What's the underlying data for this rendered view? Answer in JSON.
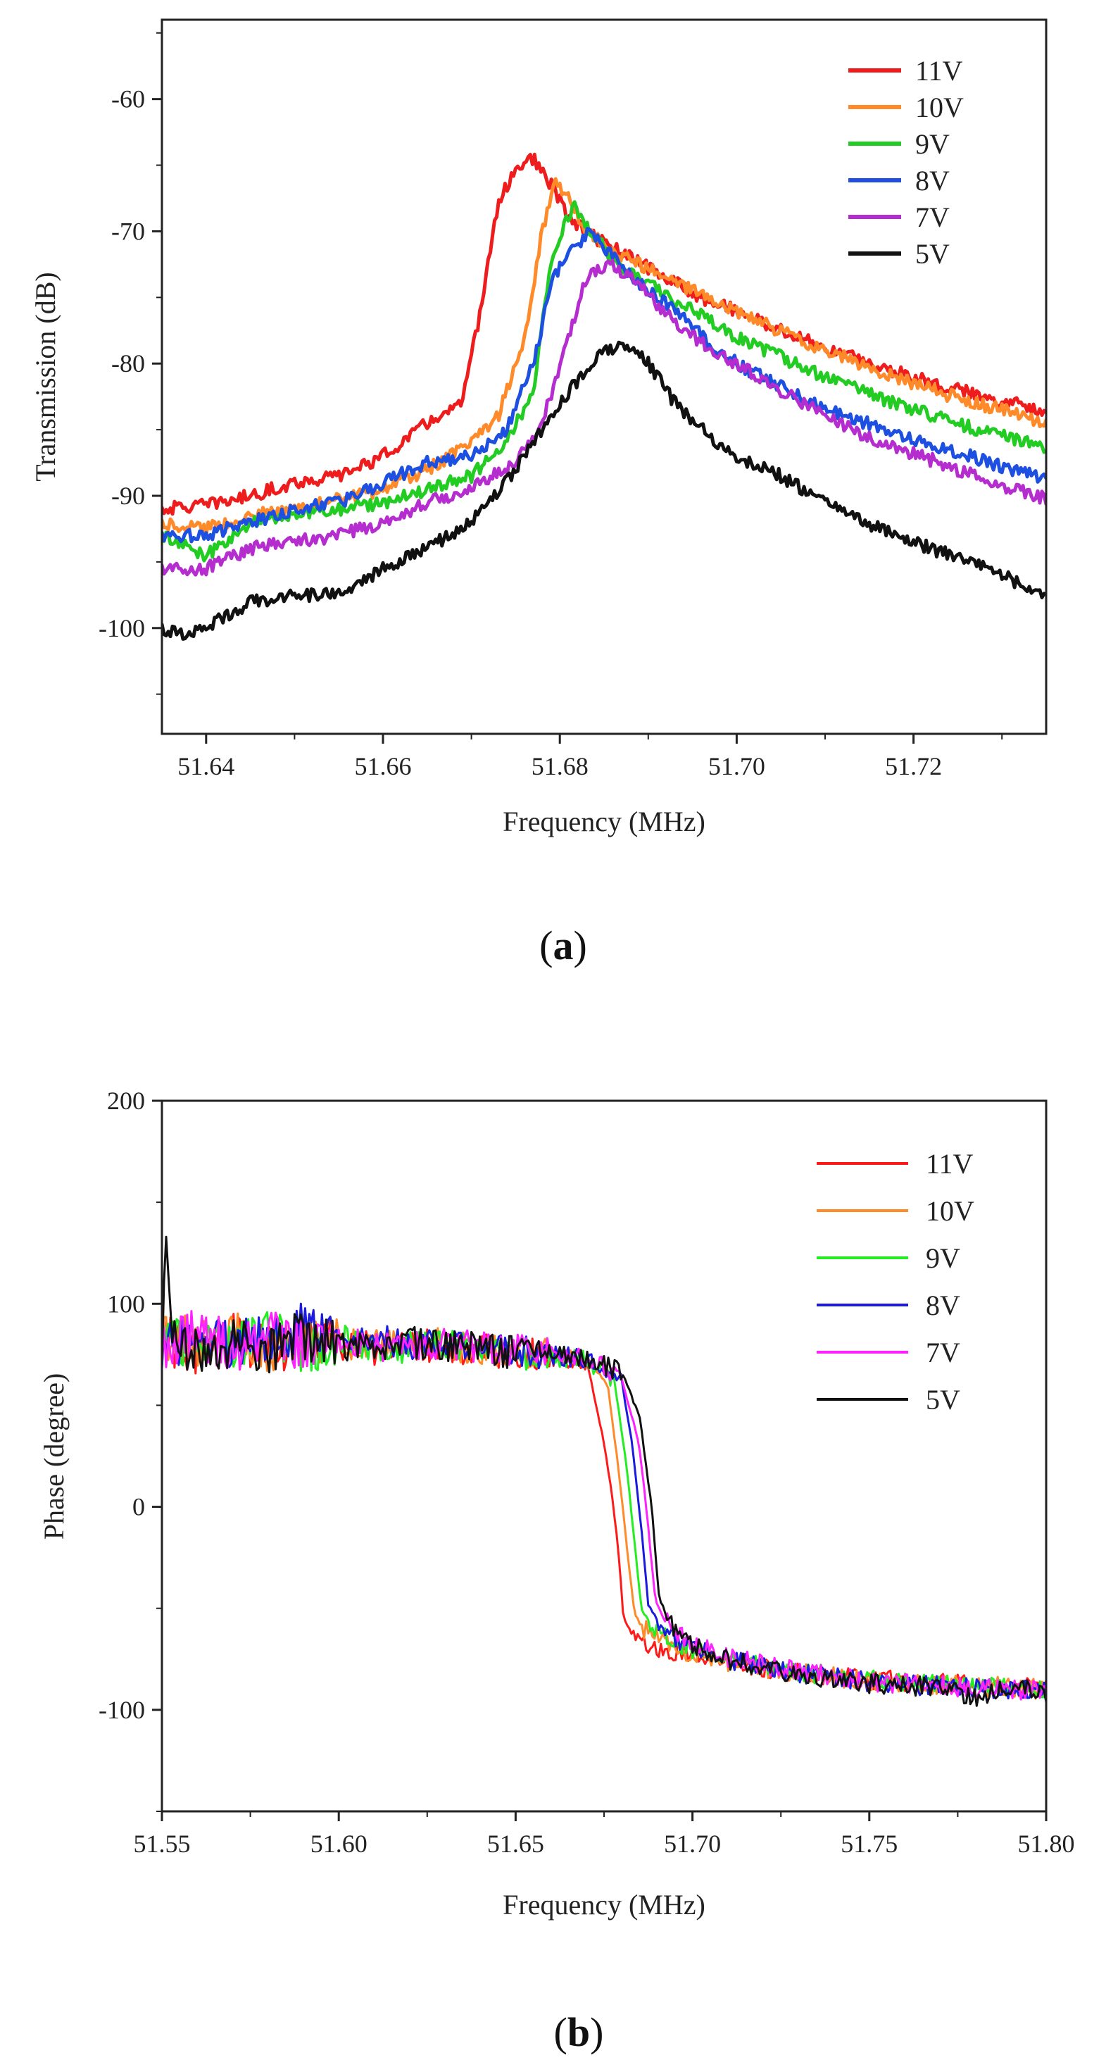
{
  "figure": {
    "panel_a_label_open": "(",
    "panel_a_label_letter": "a",
    "panel_a_label_close": ")",
    "panel_b_label_open": "(",
    "panel_b_label_letter": "b",
    "panel_b_label_close": ")"
  },
  "chart_data": [
    {
      "id": "a",
      "type": "line",
      "title": "",
      "xlabel": "Frequency (MHz)",
      "ylabel": "Transmission (dB)",
      "xlim": [
        51.635,
        51.735
      ],
      "ylim": [
        -108,
        -54
      ],
      "xticks": [
        51.64,
        51.66,
        51.68,
        51.7,
        51.72
      ],
      "xtick_labels": [
        "51.64",
        "51.66",
        "51.68",
        "51.70",
        "51.72"
      ],
      "yticks": [
        -100,
        -90,
        -80,
        -70,
        -60
      ],
      "ytick_labels": [
        "-100",
        "-90",
        "-80",
        "-70",
        "-60"
      ],
      "legend": "top-right",
      "series": [
        {
          "name": "11V",
          "color": "#ee1c1c",
          "x": [
            51.635,
            51.64,
            51.645,
            51.65,
            51.655,
            51.66,
            51.665,
            51.669,
            51.671,
            51.673,
            51.675,
            51.677,
            51.679,
            51.681,
            51.684,
            51.688,
            51.692,
            51.696,
            51.7,
            51.705,
            51.71,
            51.715,
            51.72,
            51.725,
            51.73,
            51.735
          ],
          "y": [
            -91,
            -90.7,
            -90,
            -89,
            -88.5,
            -87,
            -84.5,
            -83,
            -76,
            -68,
            -65.2,
            -64.5,
            -66.5,
            -69,
            -70.5,
            -72,
            -73.5,
            -75,
            -76,
            -77.5,
            -78.8,
            -80,
            -81,
            -82,
            -82.8,
            -83.5
          ]
        },
        {
          "name": "10V",
          "color": "#ff8a2a",
          "x": [
            51.635,
            51.64,
            51.645,
            51.65,
            51.655,
            51.66,
            51.665,
            51.67,
            51.673,
            51.676,
            51.678,
            51.6795,
            51.681,
            51.683,
            51.686,
            51.69,
            51.695,
            51.7,
            51.705,
            51.71,
            51.715,
            51.72,
            51.725,
            51.73,
            51.735
          ],
          "y": [
            -92,
            -92.5,
            -91.5,
            -91,
            -90.3,
            -89.5,
            -88,
            -86,
            -84,
            -78,
            -70,
            -66,
            -67.5,
            -70,
            -71.5,
            -72.8,
            -74.5,
            -76,
            -77.6,
            -79,
            -80.3,
            -81.5,
            -82.6,
            -83.5,
            -84.5
          ]
        },
        {
          "name": "9V",
          "color": "#22cc22",
          "x": [
            51.635,
            51.64,
            51.645,
            51.65,
            51.655,
            51.66,
            51.665,
            51.67,
            51.674,
            51.677,
            51.679,
            51.6815,
            51.684,
            51.687,
            51.69,
            51.695,
            51.7,
            51.705,
            51.71,
            51.715,
            51.72,
            51.725,
            51.73,
            51.735
          ],
          "y": [
            -93,
            -94.5,
            -92,
            -91.5,
            -91,
            -90.5,
            -89.5,
            -88.5,
            -86,
            -82,
            -72,
            -68,
            -70.5,
            -72.8,
            -74,
            -76,
            -78,
            -79.5,
            -81,
            -82.3,
            -83.5,
            -84.5,
            -85.5,
            -86.3
          ]
        },
        {
          "name": "8V",
          "color": "#1d4fe0",
          "x": [
            51.635,
            51.64,
            51.645,
            51.65,
            51.655,
            51.66,
            51.665,
            51.67,
            51.674,
            51.677,
            51.679,
            51.681,
            51.6835,
            51.686,
            51.689,
            51.693,
            51.697,
            51.7,
            51.705,
            51.71,
            51.715,
            51.72,
            51.725,
            51.73,
            51.735
          ],
          "y": [
            -93,
            -93,
            -92,
            -91,
            -90.5,
            -89,
            -87.5,
            -87,
            -85,
            -80,
            -74,
            -71.5,
            -70,
            -72,
            -74,
            -76,
            -78.5,
            -80,
            -81.8,
            -83.3,
            -84.6,
            -85.7,
            -86.7,
            -87.8,
            -88.8
          ]
        },
        {
          "name": "7V",
          "color": "#b52ccf",
          "x": [
            51.635,
            51.64,
            51.645,
            51.65,
            51.655,
            51.66,
            51.665,
            51.67,
            51.675,
            51.678,
            51.681,
            51.683,
            51.6855,
            51.688,
            51.691,
            51.695,
            51.7,
            51.705,
            51.71,
            51.715,
            51.72,
            51.725,
            51.73,
            51.735
          ],
          "y": [
            -95.5,
            -95.5,
            -94,
            -93.5,
            -93,
            -92,
            -90.5,
            -89.5,
            -87.5,
            -84.5,
            -78,
            -73.5,
            -72.3,
            -73.5,
            -75.5,
            -78,
            -80,
            -82,
            -84,
            -85.6,
            -86.8,
            -88,
            -89.2,
            -90.2
          ]
        },
        {
          "name": "5V",
          "color": "#111111",
          "x": [
            51.635,
            51.637,
            51.64,
            51.645,
            51.65,
            51.655,
            51.66,
            51.665,
            51.67,
            51.675,
            51.68,
            51.684,
            51.6875,
            51.69,
            51.693,
            51.697,
            51.7,
            51.705,
            51.71,
            51.715,
            51.72,
            51.725,
            51.73,
            51.735
          ],
          "y": [
            -100,
            -100.5,
            -100,
            -98,
            -97.5,
            -97.5,
            -95.5,
            -94,
            -92,
            -88,
            -83,
            -79.5,
            -78.5,
            -80,
            -83,
            -85.5,
            -87,
            -88.5,
            -90.5,
            -92.2,
            -93.5,
            -94.7,
            -96,
            -97.5
          ]
        }
      ]
    },
    {
      "id": "b",
      "type": "line",
      "title": "",
      "xlabel": "Frequency (MHz)",
      "ylabel": "Phase (degree)",
      "xlim": [
        51.55,
        51.8
      ],
      "ylim": [
        -150,
        200
      ],
      "xticks": [
        51.55,
        51.6,
        51.65,
        51.7,
        51.75,
        51.8
      ],
      "xtick_labels": [
        "51.55",
        "51.60",
        "51.65",
        "51.70",
        "51.75",
        "51.80"
      ],
      "yticks": [
        -100,
        0,
        100,
        200
      ],
      "ytick_labels": [
        "-100",
        "0",
        "100",
        "200"
      ],
      "legend": "top-right",
      "series": [
        {
          "name": "11V",
          "color": "#ff1a1a",
          "x": [
            51.55,
            51.56,
            51.57,
            51.58,
            51.59,
            51.6,
            51.61,
            51.62,
            51.63,
            51.64,
            51.65,
            51.66,
            51.67,
            51.674,
            51.677,
            51.679,
            51.6805,
            51.683,
            51.688,
            51.695,
            51.7,
            51.71,
            51.72,
            51.73,
            51.74,
            51.75,
            51.76,
            51.77,
            51.78,
            51.79,
            51.8
          ],
          "y": [
            82,
            78,
            85,
            76,
            83,
            80,
            78,
            80,
            79,
            77,
            76,
            74,
            72,
            40,
            10,
            -20,
            -55,
            -63,
            -68,
            -71,
            -73,
            -76,
            -79,
            -82,
            -84,
            -85,
            -86,
            -87,
            -88,
            -88,
            -89
          ]
        },
        {
          "name": "10V",
          "color": "#ff8a2a",
          "x": [
            51.55,
            51.56,
            51.57,
            51.58,
            51.59,
            51.6,
            51.61,
            51.62,
            51.63,
            51.64,
            51.65,
            51.66,
            51.67,
            51.676,
            51.679,
            51.6815,
            51.6835,
            51.686,
            51.69,
            51.695,
            51.7,
            51.71,
            51.72,
            51.73,
            51.74,
            51.75,
            51.76,
            51.77,
            51.78,
            51.79,
            51.8
          ],
          "y": [
            85,
            80,
            88,
            77,
            84,
            81,
            79,
            81,
            80,
            78,
            77,
            75,
            73,
            60,
            20,
            -20,
            -52,
            -60,
            -65,
            -69,
            -72,
            -76,
            -79,
            -82,
            -84,
            -86,
            -87,
            -88,
            -88,
            -89,
            -90
          ]
        },
        {
          "name": "9V",
          "color": "#22ee22",
          "x": [
            51.55,
            51.56,
            51.57,
            51.58,
            51.59,
            51.6,
            51.61,
            51.62,
            51.63,
            51.64,
            51.65,
            51.66,
            51.67,
            51.678,
            51.681,
            51.6835,
            51.6855,
            51.688,
            51.692,
            51.697,
            51.7,
            51.71,
            51.72,
            51.73,
            51.74,
            51.75,
            51.76,
            51.77,
            51.78,
            51.79,
            51.8
          ],
          "y": [
            80,
            83,
            79,
            86,
            78,
            82,
            80,
            78,
            81,
            79,
            76,
            74,
            73,
            62,
            25,
            -15,
            -50,
            -58,
            -64,
            -68,
            -71,
            -75,
            -79,
            -81,
            -83,
            -85,
            -87,
            -87,
            -88,
            -89,
            -90
          ]
        },
        {
          "name": "8V",
          "color": "#1a1ae0",
          "x": [
            51.55,
            51.56,
            51.57,
            51.58,
            51.59,
            51.6,
            51.61,
            51.62,
            51.63,
            51.64,
            51.65,
            51.66,
            51.67,
            51.68,
            51.683,
            51.6855,
            51.6875,
            51.69,
            51.694,
            51.699,
            51.7,
            51.71,
            51.72,
            51.73,
            51.74,
            51.75,
            51.76,
            51.77,
            51.78,
            51.79,
            51.8
          ],
          "y": [
            78,
            84,
            80,
            83,
            88,
            79,
            82,
            80,
            78,
            80,
            77,
            75,
            73,
            62,
            30,
            -10,
            -48,
            -56,
            -63,
            -68,
            -70,
            -75,
            -79,
            -82,
            -84,
            -86,
            -88,
            -88,
            -89,
            -90,
            -91
          ]
        },
        {
          "name": "7V",
          "color": "#ff22ff",
          "x": [
            51.55,
            51.56,
            51.57,
            51.58,
            51.59,
            51.6,
            51.61,
            51.62,
            51.63,
            51.64,
            51.65,
            51.66,
            51.67,
            51.68,
            51.685,
            51.6875,
            51.6895,
            51.692,
            51.696,
            51.7,
            51.71,
            51.72,
            51.73,
            51.74,
            51.75,
            51.76,
            51.77,
            51.78,
            51.79,
            51.8
          ],
          "y": [
            80,
            86,
            78,
            84,
            80,
            83,
            79,
            81,
            80,
            79,
            77,
            75,
            73,
            64,
            30,
            -10,
            -46,
            -55,
            -62,
            -68,
            -74,
            -78,
            -81,
            -84,
            -86,
            -87,
            -88,
            -89,
            -90,
            -91
          ]
        },
        {
          "name": "5V",
          "color": "#111111",
          "x": [
            51.55,
            51.551,
            51.553,
            51.56,
            51.57,
            51.58,
            51.59,
            51.6,
            51.61,
            51.62,
            51.63,
            51.64,
            51.65,
            51.66,
            51.67,
            51.68,
            51.685,
            51.6885,
            51.6905,
            51.693,
            51.697,
            51.7,
            51.71,
            51.72,
            51.73,
            51.74,
            51.75,
            51.76,
            51.77,
            51.78,
            51.79,
            51.8
          ],
          "y": [
            70,
            138,
            80,
            75,
            82,
            78,
            85,
            80,
            79,
            81,
            80,
            78,
            76,
            75,
            73,
            66,
            45,
            0,
            -44,
            -56,
            -63,
            -69,
            -75,
            -79,
            -82,
            -85,
            -87,
            -88,
            -89,
            -95,
            -88,
            -92
          ]
        }
      ]
    }
  ]
}
